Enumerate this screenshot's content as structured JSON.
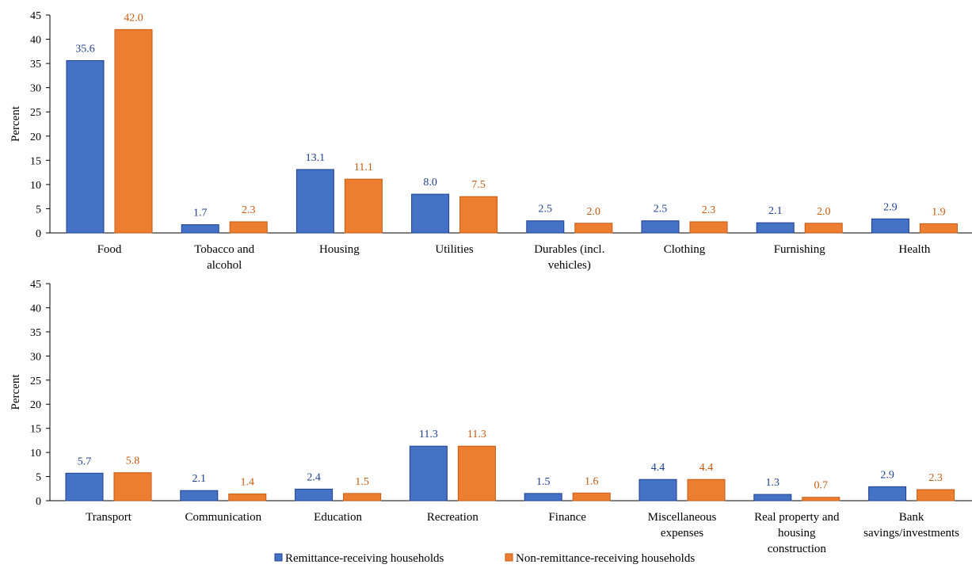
{
  "colors": {
    "series_fill": [
      "#4472c4",
      "#ed7d31"
    ],
    "series_stroke": [
      "#1f3f8f",
      "#c45a10"
    ],
    "label_text": [
      "#1f3f8f",
      "#c45a10"
    ]
  },
  "legend": {
    "placement": "bottom-center",
    "items": [
      "Remittance-receiving households",
      "Non-remittance-receiving households"
    ]
  },
  "chart_data": [
    {
      "type": "bar",
      "ylabel": "Percent",
      "ylim": [
        0,
        45
      ],
      "yticks": [
        "0",
        "5",
        "10",
        "15",
        "20",
        "25",
        "30",
        "35",
        "40",
        "45"
      ],
      "grid": false,
      "categories": [
        "Food",
        "Tobacco and alcohol",
        "Housing",
        "Utilities",
        "Durables (incl. vehicles)",
        "Clothing",
        "Furnishing",
        "Health"
      ],
      "category_lines": [
        [
          "Food"
        ],
        [
          "Tobacco and",
          "alcohol"
        ],
        [
          "Housing"
        ],
        [
          "Utilities"
        ],
        [
          "Durables (incl.",
          "vehicles)"
        ],
        [
          "Clothing"
        ],
        [
          "Furnishing"
        ],
        [
          "Health"
        ]
      ],
      "series": [
        {
          "name": "Remittance-receiving households",
          "values": [
            35.6,
            1.7,
            13.1,
            8.0,
            2.5,
            2.5,
            2.1,
            2.9
          ],
          "labels": [
            "35.6",
            "1.7",
            "13.1",
            "8.0",
            "2.5",
            "2.5",
            "2.1",
            "2.9"
          ]
        },
        {
          "name": "Non-remittance-receiving households",
          "values": [
            42.0,
            2.3,
            11.1,
            7.5,
            2.0,
            2.3,
            2.0,
            1.9
          ],
          "labels": [
            "42.0",
            "2.3",
            "11.1",
            "7.5",
            "2.0",
            "2.3",
            "2.0",
            "1.9"
          ]
        }
      ]
    },
    {
      "type": "bar",
      "ylabel": "Percent",
      "ylim": [
        0,
        45
      ],
      "yticks": [
        "0",
        "5",
        "10",
        "15",
        "20",
        "25",
        "30",
        "35",
        "40",
        "45"
      ],
      "grid": false,
      "categories": [
        "Transport",
        "Communication",
        "Education",
        "Recreation",
        "Finance",
        "Miscellaneous expenses",
        "Real property and housing construction",
        "Bank savings/investments"
      ],
      "category_lines": [
        [
          "Transport"
        ],
        [
          "Communication"
        ],
        [
          "Education"
        ],
        [
          "Recreation"
        ],
        [
          "Finance"
        ],
        [
          "Miscellaneous",
          "expenses"
        ],
        [
          "Real property and",
          "housing",
          "construction"
        ],
        [
          "Bank",
          "savings/investments"
        ]
      ],
      "series": [
        {
          "name": "Remittance-receiving households",
          "values": [
            5.7,
            2.1,
            2.4,
            11.3,
            1.5,
            4.4,
            1.3,
            2.9
          ],
          "labels": [
            "5.7",
            "2.1",
            "2.4",
            "11.3",
            "1.5",
            "4.4",
            "1.3",
            "2.9"
          ]
        },
        {
          "name": "Non-remittance-receiving households",
          "values": [
            5.8,
            1.4,
            1.5,
            11.3,
            1.6,
            4.4,
            0.7,
            2.3
          ],
          "labels": [
            "5.8",
            "1.4",
            "1.5",
            "11.3",
            "1.6",
            "4.4",
            "0.7",
            "2.3"
          ]
        }
      ]
    }
  ]
}
